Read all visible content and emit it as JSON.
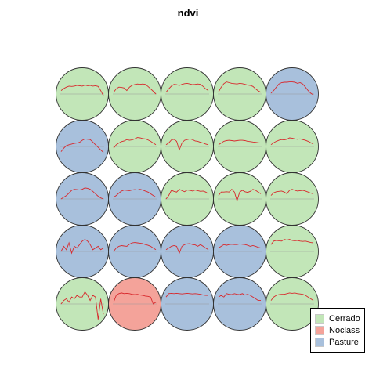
{
  "chart_data": {
    "type": "som-grid",
    "title": "ndvi",
    "rows": 5,
    "cols": 5,
    "classes": [
      {
        "name": "Cerrado",
        "color": "#c2e6b8"
      },
      {
        "name": "Noclass",
        "color": "#f4a39a"
      },
      {
        "name": "Pasture",
        "color": "#a8c0dc"
      }
    ],
    "line_color": "#d8282c",
    "baseline_color": "#999999",
    "cells": [
      {
        "class": "Cerrado",
        "values": [
          0.2,
          0.32,
          0.4,
          0.46,
          0.44,
          0.46,
          0.5,
          0.48,
          0.46,
          0.52,
          0.48,
          0.5,
          0.46,
          0.48,
          0.44,
          0.2,
          -0.1
        ]
      },
      {
        "class": "Cerrado",
        "values": [
          0.1,
          0.3,
          0.4,
          0.38,
          0.35,
          0.2,
          0.4,
          0.5,
          0.55,
          0.58,
          0.56,
          0.58,
          0.56,
          0.44,
          0.3,
          0.16,
          0.0
        ]
      },
      {
        "class": "Cerrado",
        "values": [
          0.1,
          0.3,
          0.46,
          0.56,
          0.54,
          0.5,
          0.56,
          0.6,
          0.62,
          0.58,
          0.54,
          0.56,
          0.58,
          0.56,
          0.44,
          0.3,
          0.2
        ]
      },
      {
        "class": "Cerrado",
        "values": [
          0.12,
          0.4,
          0.6,
          0.7,
          0.66,
          0.62,
          0.6,
          0.58,
          0.62,
          0.6,
          0.56,
          0.52,
          0.5,
          0.44,
          0.3,
          0.18,
          0.1
        ]
      },
      {
        "class": "Pasture",
        "values": [
          0.05,
          0.2,
          0.4,
          0.58,
          0.66,
          0.68,
          0.68,
          0.7,
          0.7,
          0.68,
          0.62,
          0.66,
          0.58,
          0.4,
          0.2,
          0.05,
          -0.05
        ]
      },
      {
        "class": "Pasture",
        "values": [
          -0.3,
          -0.1,
          0.05,
          0.1,
          0.14,
          0.18,
          0.2,
          0.24,
          0.36,
          0.44,
          0.42,
          0.4,
          0.26,
          0.1,
          -0.05,
          -0.2,
          -0.34
        ]
      },
      {
        "class": "Cerrado",
        "values": [
          -0.1,
          0.1,
          0.2,
          0.28,
          0.32,
          0.4,
          0.36,
          0.38,
          0.44,
          0.52,
          0.5,
          0.46,
          0.44,
          0.38,
          0.3,
          0.2,
          0.1
        ]
      },
      {
        "class": "Cerrado",
        "values": [
          0.1,
          0.2,
          0.38,
          0.42,
          0.3,
          -0.2,
          0.2,
          0.36,
          0.4,
          0.44,
          0.4,
          0.32,
          0.3,
          0.24,
          0.2,
          0.14,
          0.1
        ]
      },
      {
        "class": "Cerrado",
        "values": [
          0.1,
          0.2,
          0.3,
          0.34,
          0.36,
          0.34,
          0.32,
          0.34,
          0.36,
          0.36,
          0.34,
          0.3,
          0.28,
          0.26,
          0.24,
          0.22,
          0.2
        ]
      },
      {
        "class": "Cerrado",
        "values": [
          0.1,
          0.22,
          0.3,
          0.36,
          0.4,
          0.38,
          0.42,
          0.5,
          0.48,
          0.44,
          0.42,
          0.44,
          0.4,
          0.36,
          0.3,
          0.22,
          0.14
        ]
      },
      {
        "class": "Pasture",
        "values": [
          0.0,
          0.1,
          0.2,
          0.34,
          0.5,
          0.56,
          0.54,
          0.52,
          0.56,
          0.64,
          0.62,
          0.56,
          0.44,
          0.3,
          0.16,
          0.06,
          0.0
        ]
      },
      {
        "class": "Pasture",
        "values": [
          0.1,
          0.2,
          0.34,
          0.46,
          0.52,
          0.5,
          0.48,
          0.52,
          0.54,
          0.52,
          0.56,
          0.52,
          0.46,
          0.4,
          0.3,
          0.2,
          0.1
        ]
      },
      {
        "class": "Cerrado",
        "values": [
          0.0,
          0.2,
          0.5,
          0.44,
          0.4,
          0.56,
          0.48,
          0.42,
          0.52,
          0.5,
          0.46,
          0.52,
          0.48,
          0.44,
          0.46,
          0.4,
          0.3
        ]
      },
      {
        "class": "Cerrado",
        "values": [
          0.2,
          0.4,
          0.4,
          0.42,
          0.4,
          0.56,
          0.4,
          -0.1,
          0.4,
          0.5,
          0.42,
          0.38,
          0.44,
          0.56,
          0.5,
          0.4,
          0.3
        ]
      },
      {
        "class": "Cerrado",
        "values": [
          0.2,
          0.36,
          0.42,
          0.44,
          0.46,
          0.4,
          0.3,
          0.5,
          0.56,
          0.5,
          0.46,
          0.48,
          0.5,
          0.46,
          0.4,
          0.34,
          0.3
        ]
      },
      {
        "class": "Pasture",
        "values": [
          0.0,
          0.3,
          0.1,
          0.5,
          -0.1,
          0.3,
          0.2,
          0.4,
          0.6,
          0.7,
          0.6,
          0.4,
          0.1,
          0.2,
          0.3,
          0.1,
          0.2
        ]
      },
      {
        "class": "Pasture",
        "values": [
          0.0,
          0.2,
          0.3,
          0.34,
          0.32,
          0.3,
          0.42,
          0.5,
          0.52,
          0.5,
          0.48,
          0.46,
          0.4,
          0.36,
          0.3,
          0.2,
          0.1
        ]
      },
      {
        "class": "Pasture",
        "values": [
          0.1,
          0.2,
          0.3,
          0.34,
          0.3,
          -0.1,
          0.3,
          0.4,
          0.44,
          0.46,
          0.4,
          0.38,
          0.3,
          0.4,
          0.3,
          0.2,
          0.1
        ]
      },
      {
        "class": "Pasture",
        "values": [
          0.2,
          0.3,
          0.4,
          0.36,
          0.4,
          0.42,
          0.4,
          0.4,
          0.44,
          0.42,
          0.4,
          0.36,
          0.3,
          0.34,
          0.3,
          0.24,
          0.2
        ]
      },
      {
        "class": "Cerrado",
        "values": [
          0.4,
          0.6,
          0.64,
          0.62,
          0.6,
          0.7,
          0.66,
          0.7,
          0.64,
          0.62,
          0.64,
          0.6,
          0.58,
          0.6,
          0.56,
          0.52,
          0.5
        ]
      },
      {
        "class": "Cerrado",
        "values": [
          0.0,
          0.2,
          0.3,
          0.1,
          0.4,
          0.3,
          0.5,
          0.4,
          0.4,
          0.7,
          0.5,
          0.2,
          0.5,
          0.4,
          -0.9,
          0.3,
          -0.6
        ]
      },
      {
        "class": "Noclass",
        "values": [
          0.1,
          0.5,
          0.6,
          0.64,
          0.6,
          0.62,
          0.6,
          0.56,
          0.54,
          0.56,
          0.52,
          0.5,
          0.46,
          0.44,
          0.4,
          0.0,
          0.1
        ]
      },
      {
        "class": "Pasture",
        "values": [
          0.4,
          0.6,
          0.62,
          0.6,
          0.62,
          0.6,
          0.58,
          0.6,
          0.62,
          0.6,
          0.58,
          0.6,
          0.58,
          0.56,
          0.52,
          0.5,
          0.5
        ]
      },
      {
        "class": "Pasture",
        "values": [
          0.4,
          0.5,
          0.4,
          0.6,
          0.56,
          0.54,
          0.6,
          0.56,
          0.54,
          0.6,
          0.52,
          0.56,
          0.5,
          0.4,
          0.3,
          0.2,
          0.2
        ]
      },
      {
        "class": "Cerrado",
        "values": [
          0.2,
          0.4,
          0.5,
          0.54,
          0.56,
          0.56,
          0.6,
          0.64,
          0.62,
          0.64,
          0.6,
          0.58,
          0.56,
          0.5,
          0.4,
          0.3,
          0.2
        ]
      }
    ]
  }
}
